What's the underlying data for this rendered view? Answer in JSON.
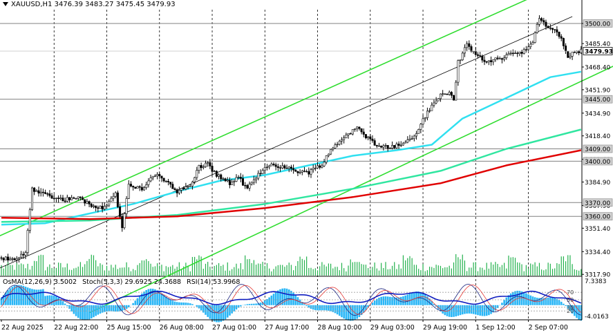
{
  "header": {
    "symbol": "XAUUSD,H1",
    "ohlc": "3476.39 3483.27 3475.45 3479.93"
  },
  "indicator_header": {
    "osma": "OsMA(12,26,9) 3.5002",
    "stoch": "Stoch(5,3,3) 29.6925 24.3688",
    "rsi": "RSI(14) 53.9968"
  },
  "chart_data": {
    "type": "candlestick",
    "symbol": "XAUUSD",
    "timeframe": "H1",
    "ylim": [
      3317,
      3510
    ],
    "price_ticks": [
      "3500.00",
      "3485.40",
      "3468.40",
      "3451.90",
      "3434.90",
      "3418.40",
      "3401.40",
      "3384.90",
      "3367.90",
      "3351.40",
      "3334.40",
      "3317.90"
    ],
    "x_tick_labels": [
      "22 Aug 2025",
      "22 Aug 22:00",
      "25 Aug 15:00",
      "26 Aug 08:00",
      "27 Aug 01:00",
      "27 Aug 17:00",
      "28 Aug 10:00",
      "29 Aug 03:00",
      "29 Aug 19:00",
      "1 Sep 12:00",
      "2 Sep 07:00"
    ],
    "current_price": "3479.93",
    "current_price_value": 3479.93,
    "horizontal_levels": [
      {
        "label": "3500.00",
        "value": 3500.0
      },
      {
        "label": "3445.00",
        "value": 3445.0
      },
      {
        "label": "3409.00",
        "value": 3409.0
      },
      {
        "label": "3400.00",
        "value": 3400.0
      },
      {
        "label": "3370.00",
        "value": 3370.0
      },
      {
        "label": "3360.00",
        "value": 3360.0
      }
    ],
    "price_path": [
      [
        0,
        3330
      ],
      [
        6,
        3328
      ],
      [
        11,
        3334
      ],
      [
        14,
        3380
      ],
      [
        20,
        3376
      ],
      [
        28,
        3372
      ],
      [
        34,
        3374
      ],
      [
        40,
        3369
      ],
      [
        46,
        3366
      ],
      [
        52,
        3376
      ],
      [
        55,
        3352
      ],
      [
        58,
        3382
      ],
      [
        64,
        3380
      ],
      [
        70,
        3390
      ],
      [
        76,
        3385
      ],
      [
        80,
        3378
      ],
      [
        86,
        3382
      ],
      [
        90,
        3396
      ],
      [
        94,
        3398
      ],
      [
        98,
        3390
      ],
      [
        104,
        3384
      ],
      [
        108,
        3388
      ],
      [
        112,
        3380
      ],
      [
        118,
        3392
      ],
      [
        122,
        3398
      ],
      [
        128,
        3396
      ],
      [
        134,
        3393
      ],
      [
        140,
        3392
      ],
      [
        146,
        3398
      ],
      [
        150,
        3408
      ],
      [
        156,
        3418
      ],
      [
        162,
        3424
      ],
      [
        166,
        3418
      ],
      [
        170,
        3413
      ],
      [
        176,
        3410
      ],
      [
        182,
        3412
      ],
      [
        188,
        3418
      ],
      [
        192,
        3430
      ],
      [
        196,
        3440
      ],
      [
        200,
        3448
      ],
      [
        204,
        3450
      ],
      [
        206,
        3444
      ],
      [
        208,
        3472
      ],
      [
        212,
        3484
      ],
      [
        216,
        3478
      ],
      [
        220,
        3472
      ],
      [
        226,
        3474
      ],
      [
        232,
        3478
      ],
      [
        238,
        3480
      ],
      [
        242,
        3486
      ],
      [
        245,
        3504
      ],
      [
        248,
        3498
      ],
      [
        252,
        3496
      ],
      [
        255,
        3488
      ],
      [
        258,
        3476
      ],
      [
        262,
        3480
      ],
      [
        264,
        3479.93
      ]
    ],
    "moving_averages": [
      {
        "color": "#30e0f0",
        "points": [
          [
            0,
            3354
          ],
          [
            20,
            3355
          ],
          [
            40,
            3362
          ],
          [
            60,
            3369
          ],
          [
            80,
            3378
          ],
          [
            100,
            3386
          ],
          [
            120,
            3390
          ],
          [
            140,
            3397
          ],
          [
            160,
            3404
          ],
          [
            180,
            3408
          ],
          [
            196,
            3412
          ],
          [
            210,
            3431
          ],
          [
            230,
            3446
          ],
          [
            250,
            3461
          ],
          [
            264,
            3465
          ]
        ]
      },
      {
        "color": "#30e6a0",
        "points": [
          [
            0,
            3356
          ],
          [
            40,
            3357
          ],
          [
            80,
            3361
          ],
          [
            120,
            3369
          ],
          [
            160,
            3380
          ],
          [
            200,
            3393
          ],
          [
            230,
            3409
          ],
          [
            264,
            3423
          ]
        ]
      },
      {
        "color": "#e00000",
        "points": [
          [
            0,
            3359
          ],
          [
            40,
            3358
          ],
          [
            80,
            3360
          ],
          [
            120,
            3366
          ],
          [
            160,
            3374
          ],
          [
            200,
            3384
          ],
          [
            230,
            3397
          ],
          [
            264,
            3408
          ]
        ]
      }
    ],
    "channel_lines": [
      {
        "color": "#30dd30",
        "from": [
          -30,
          3325
        ],
        "to": [
          264,
          3535
        ]
      },
      {
        "color": "#30dd30",
        "from": [
          40,
          3290
        ],
        "to": [
          320,
          3500
        ]
      },
      {
        "color": "#000000",
        "from": [
          -10,
          3316
        ],
        "to": [
          260,
          3505
        ]
      }
    ],
    "indicator": {
      "osma_ylim": [
        -4.0163,
        7.3383
      ],
      "osma_tick_labels": [
        "7.3383",
        "-4.0163"
      ],
      "osc_levels": [
        {
          "label": "70",
          "value": 70
        },
        {
          "label": "50",
          "value": 50
        },
        {
          "label": "30",
          "value": 30
        },
        {
          "label": "20",
          "value": 20
        }
      ]
    }
  }
}
